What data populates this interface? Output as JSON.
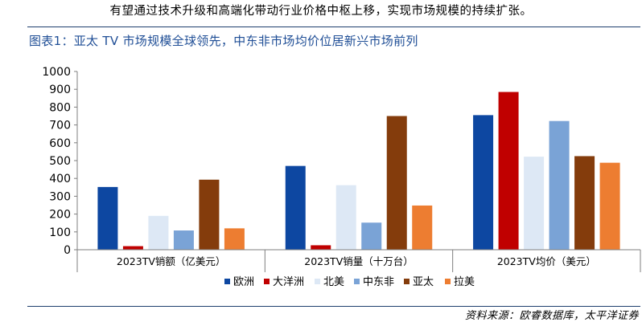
{
  "intro_text": "有望通过技术升级和高端化带动行业价格中枢上移，实现市场规模的持续扩张。",
  "figure_title": "图表1：亚太 TV 市场规模全球领先，中东非市场均价位居新兴市场前列",
  "source_text": "资料来源：欧睿数据库，太平洋证券",
  "chart_data": {
    "type": "bar",
    "categories": [
      "2023TV销额（亿美元）",
      "2023TV销量（十万台）",
      "2023TV均价（美元）"
    ],
    "series": [
      {
        "name": "欧洲",
        "color": "#0d47a1",
        "values": [
          352,
          470,
          755
        ]
      },
      {
        "name": "大洋洲",
        "color": "#c00000",
        "values": [
          20,
          25,
          885
        ]
      },
      {
        "name": "北美",
        "color": "#dde8f5",
        "values": [
          190,
          362,
          522
        ]
      },
      {
        "name": "中东非",
        "color": "#7aa3d6",
        "values": [
          108,
          152,
          722
        ]
      },
      {
        "name": "亚太",
        "color": "#843c0c",
        "values": [
          393,
          750,
          525
        ]
      },
      {
        "name": "拉美",
        "color": "#ed7d31",
        "values": [
          120,
          248,
          488
        ]
      }
    ],
    "ylim": [
      0,
      1000
    ],
    "yticks": [
      "0",
      "100",
      "200",
      "300",
      "400",
      "500",
      "600",
      "700",
      "800",
      "900",
      "1000"
    ],
    "grid": false,
    "legend_position": "bottom"
  }
}
